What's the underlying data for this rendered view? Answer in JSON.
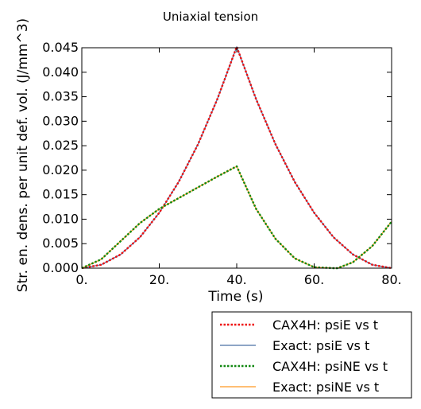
{
  "chart_data": {
    "type": "line",
    "title": "Uniaxial tension",
    "xlabel": "Time (s)",
    "ylabel": "Str. en. dens. per unit def. vol. (J/mm^3)",
    "xlim": [
      0,
      80
    ],
    "ylim": [
      0,
      0.045
    ],
    "x_ticks": [
      0,
      20,
      40,
      60,
      80
    ],
    "x_tick_labels": [
      "0.",
      "20.",
      "40.",
      "60.",
      "80."
    ],
    "y_ticks": [
      0.0,
      0.005,
      0.01,
      0.015,
      0.02,
      0.025,
      0.03,
      0.035,
      0.04,
      0.045
    ],
    "y_tick_labels": [
      "0.000",
      "0.005",
      "0.010",
      "0.015",
      "0.020",
      "0.025",
      "0.030",
      "0.035",
      "0.040",
      "0.045"
    ],
    "grid": false,
    "legend_position": "below-right",
    "series": [
      {
        "name": "CAX4H: psiE vs t",
        "color": "#ee1111",
        "style": "dotted",
        "x": [
          0,
          5,
          10,
          15,
          20,
          25,
          30,
          35,
          40,
          45,
          50,
          55,
          60,
          65,
          70,
          75,
          80
        ],
        "y": [
          0.0,
          0.0007,
          0.0028,
          0.0063,
          0.0113,
          0.0176,
          0.0253,
          0.0345,
          0.0452,
          0.0345,
          0.0253,
          0.0176,
          0.0113,
          0.0063,
          0.0028,
          0.0007,
          0.0
        ]
      },
      {
        "name": "Exact: psiE vs t",
        "color": "#4a6fa5",
        "style": "solid",
        "x": [
          0,
          5,
          10,
          15,
          20,
          25,
          30,
          35,
          40,
          45,
          50,
          55,
          60,
          65,
          70,
          75,
          80
        ],
        "y": [
          0.0,
          0.0007,
          0.0028,
          0.0063,
          0.0113,
          0.0176,
          0.0253,
          0.0345,
          0.0452,
          0.0345,
          0.0253,
          0.0176,
          0.0113,
          0.0063,
          0.0028,
          0.0007,
          0.0
        ]
      },
      {
        "name": "CAX4H: psiNE vs t",
        "color": "#118811",
        "style": "dotted",
        "x": [
          0,
          5,
          10,
          15,
          20,
          25,
          30,
          35,
          40,
          45,
          50,
          55,
          60,
          65,
          66,
          70,
          75,
          80
        ],
        "y": [
          0.0,
          0.0018,
          0.0055,
          0.0092,
          0.0121,
          0.0143,
          0.0165,
          0.0187,
          0.0208,
          0.0121,
          0.006,
          0.002,
          0.0002,
          0.0,
          0.0,
          0.0012,
          0.0045,
          0.0095
        ]
      },
      {
        "name": "Exact: psiNE vs t",
        "color": "#ff9922",
        "style": "solid",
        "x": [
          0,
          5,
          10,
          15,
          20,
          25,
          30,
          35,
          40,
          45,
          50,
          55,
          60,
          65,
          66,
          70,
          75,
          80
        ],
        "y": [
          0.0,
          0.0018,
          0.0055,
          0.0092,
          0.0121,
          0.0143,
          0.0165,
          0.0187,
          0.0208,
          0.0121,
          0.006,
          0.002,
          0.0002,
          0.0,
          0.0,
          0.0012,
          0.0045,
          0.0095
        ]
      }
    ]
  }
}
